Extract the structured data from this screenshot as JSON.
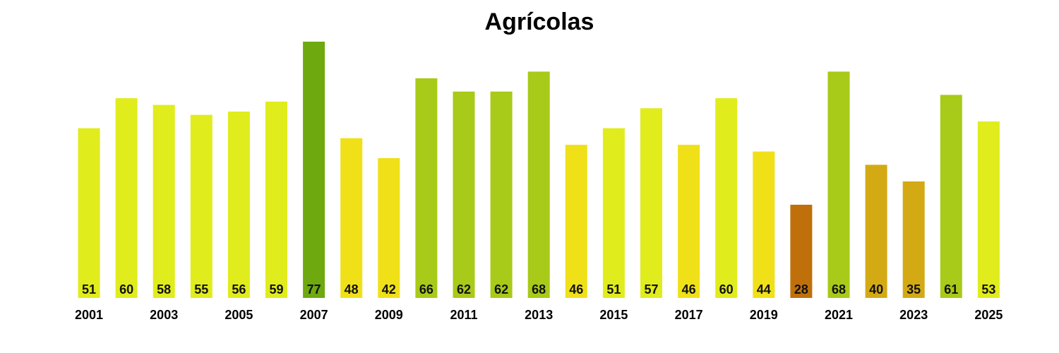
{
  "chart_data": {
    "type": "bar",
    "title": "Agrícolas",
    "xlabel": "",
    "ylabel": "",
    "categories": [
      "2001",
      "2002",
      "2003",
      "2004",
      "2005",
      "2006",
      "2007",
      "2008",
      "2009",
      "2010",
      "2011",
      "2012",
      "2013",
      "2014",
      "2015",
      "2016",
      "2017",
      "2018",
      "2019",
      "2020",
      "2021",
      "2022",
      "2023",
      "2024",
      "2025"
    ],
    "tick_labels": [
      "2001",
      "",
      "2003",
      "",
      "2005",
      "",
      "2007",
      "",
      "2009",
      "",
      "2011",
      "",
      "2013",
      "",
      "2015",
      "",
      "2017",
      "",
      "2019",
      "",
      "2021",
      "",
      "2023",
      "",
      "2025"
    ],
    "values": [
      51,
      60,
      58,
      55,
      56,
      59,
      77,
      48,
      42,
      66,
      62,
      62,
      68,
      46,
      51,
      57,
      46,
      60,
      44,
      28,
      68,
      40,
      35,
      61,
      53
    ],
    "colors": [
      "#e0ec1c",
      "#e0ec1c",
      "#e0ec1c",
      "#e0ec1c",
      "#e0ec1c",
      "#e0ec1c",
      "#6ea910",
      "#f0e018",
      "#f0e018",
      "#a8ca18",
      "#a8ca18",
      "#a8ca18",
      "#a8ca18",
      "#f0e018",
      "#e0ec1c",
      "#e0ec1c",
      "#f0e018",
      "#e0ec1c",
      "#f0e018",
      "#c0700a",
      "#a8ca18",
      "#d4aa14",
      "#d4aa14",
      "#a8ca18",
      "#e0ec1c"
    ],
    "ylim": [
      0,
      77
    ],
    "grid": false,
    "legend": "none",
    "data_labels": "inside-bottom"
  }
}
